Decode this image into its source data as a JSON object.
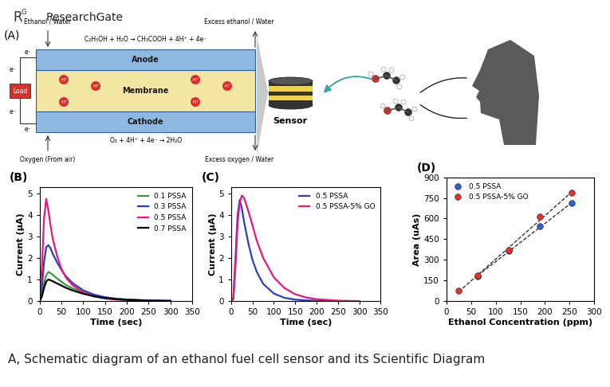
{
  "header": {
    "logo": "R",
    "logo_superscript": "G",
    "site": "ResearchGate"
  },
  "schematic": {
    "panel": "(A)",
    "inlet_top": "Ethanol / Water",
    "outlet_top": "Excess ethanol / Water",
    "anode_reaction": "C₂H₅OH + H₂O → CH₃COOH + 4H⁺ + 4e⁻",
    "layers": [
      "Anode",
      "Membrane",
      "Cathode"
    ],
    "cathode_reaction": "O₂ + 4H⁺ + 4e⁻ → 2H₂O",
    "inlet_bottom": "Oxygen (From air)",
    "outlet_bottom": "Excess oxygen / Water",
    "load": "Load",
    "electron": "e⁻",
    "proton": "H⁺",
    "sensor": "Sensor"
  },
  "chart_data": [
    {
      "type": "line",
      "panel": "(B)",
      "x_label": "Time (sec)",
      "y_label": "Current (μA)",
      "x": [
        0,
        5,
        10,
        15,
        20,
        25,
        30,
        40,
        50,
        60,
        75,
        100,
        125,
        150,
        175,
        200,
        250,
        300
      ],
      "series": [
        {
          "name": "0.1 PSSA",
          "color": "#3a9a3a",
          "values": [
            0,
            0.3,
            0.8,
            1.2,
            1.35,
            1.3,
            1.22,
            1.05,
            0.9,
            0.75,
            0.6,
            0.4,
            0.26,
            0.17,
            0.11,
            0.07,
            0.03,
            0.01
          ]
        },
        {
          "name": "0.3 PSSA",
          "color": "#2a3fbd",
          "values": [
            0,
            0.6,
            1.8,
            2.5,
            2.6,
            2.45,
            2.2,
            1.8,
            1.45,
            1.15,
            0.85,
            0.5,
            0.3,
            0.18,
            0.11,
            0.07,
            0.03,
            0.01
          ]
        },
        {
          "name": "0.5 PSSA",
          "color": "#e8177d",
          "values": [
            0,
            1.5,
            3.8,
            4.75,
            4.2,
            3.5,
            2.9,
            2.1,
            1.5,
            1.1,
            0.75,
            0.4,
            0.22,
            0.12,
            0.07,
            0.04,
            0.01,
            0.0
          ]
        },
        {
          "name": "0.7 PSSA",
          "color": "#000000",
          "values": [
            0,
            0.2,
            0.6,
            0.9,
            1.0,
            0.97,
            0.92,
            0.82,
            0.72,
            0.62,
            0.5,
            0.34,
            0.22,
            0.14,
            0.09,
            0.06,
            0.02,
            0.01
          ]
        }
      ],
      "xlim": [
        0,
        350
      ],
      "xticks": [
        0,
        50,
        100,
        150,
        200,
        250,
        300,
        350
      ],
      "ylim": [
        0,
        5.3
      ],
      "yticks": [
        0,
        1,
        2,
        3,
        4,
        5
      ],
      "legend": "upper right",
      "grid": false
    },
    {
      "type": "line",
      "panel": "(C)",
      "x_label": "Time (sec)",
      "y_label": "Current (μA)",
      "x": [
        0,
        5,
        10,
        15,
        20,
        25,
        30,
        40,
        50,
        60,
        75,
        100,
        125,
        150,
        175,
        200,
        250,
        300
      ],
      "series": [
        {
          "name": "0.5 PSSA",
          "color": "#2a3fbd",
          "values": [
            0,
            0.1,
            2.0,
            4.0,
            4.7,
            4.3,
            3.7,
            2.7,
            1.9,
            1.35,
            0.8,
            0.35,
            0.15,
            0.07,
            0.03,
            0.02,
            0.0,
            0.0
          ]
        },
        {
          "name": "0.5 PSSA-5% GO",
          "color": "#e8177d",
          "values": [
            0,
            0.1,
            1.6,
            3.6,
            4.6,
            4.9,
            4.8,
            4.2,
            3.5,
            2.8,
            2.0,
            1.1,
            0.6,
            0.32,
            0.17,
            0.09,
            0.02,
            0.0
          ]
        }
      ],
      "xlim": [
        0,
        350
      ],
      "xticks": [
        0,
        50,
        100,
        150,
        200,
        250,
        300,
        350
      ],
      "ylim": [
        0,
        5.3
      ],
      "yticks": [
        0,
        1,
        2,
        3,
        4,
        5
      ],
      "legend": "upper right",
      "grid": false
    },
    {
      "type": "scatter",
      "panel": "(D)",
      "x_label": "Ethanol Concentration (ppm)",
      "y_label": "Area (uAs)",
      "series": [
        {
          "name": "0.5 PSSA",
          "color": "#2f5fd6",
          "marker": "circle",
          "line_style": "dashed",
          "x": [
            63,
            127,
            190,
            255
          ],
          "values": [
            180,
            365,
            545,
            710
          ]
        },
        {
          "name": "0.5 PSSA-5% GO",
          "color": "#e8302a",
          "marker": "circle",
          "line_style": "dashed",
          "x": [
            25,
            63,
            127,
            190,
            255
          ],
          "values": [
            75,
            185,
            370,
            615,
            785
          ]
        }
      ],
      "xlim": [
        0,
        300
      ],
      "xticks": [
        0,
        50,
        100,
        150,
        200,
        250,
        300
      ],
      "ylim": [
        0,
        900
      ],
      "yticks": [
        0,
        150,
        300,
        450,
        600,
        750,
        900
      ],
      "legend": "upper left",
      "grid": false
    }
  ],
  "caption": "A, Schematic diagram of an ethanol fuel cell sensor and its Scientific Diagram"
}
